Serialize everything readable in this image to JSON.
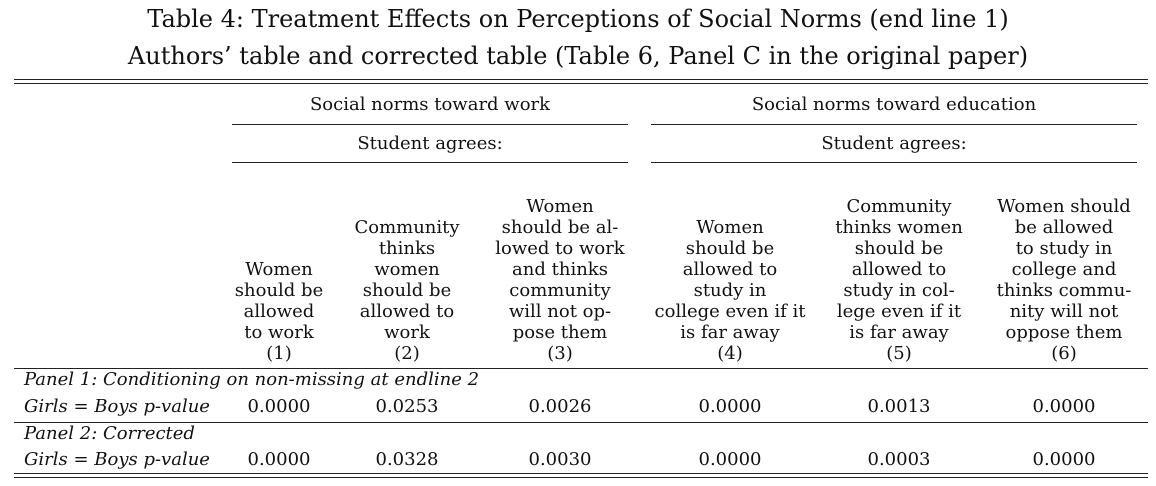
{
  "title": {
    "line1": "Table 4: Treatment Effects on Perceptions of Social Norms (end line 1)",
    "line2": "Authors’ table and corrected table (Table 6, Panel C in the original paper)"
  },
  "groups": [
    {
      "label": "Social norms toward work",
      "sublabel": "Student agrees:"
    },
    {
      "label": "Social norms toward education",
      "sublabel": "Student agrees:"
    }
  ],
  "columns": [
    {
      "lines": [
        "Women",
        "should be",
        "allowed",
        "to work"
      ],
      "number": "(1)"
    },
    {
      "lines": [
        "Community",
        "thinks",
        "women",
        "should be",
        "allowed to",
        "work"
      ],
      "number": "(2)"
    },
    {
      "lines": [
        "Women",
        "should be al-",
        "lowed to work",
        "and thinks",
        "community",
        "will not op-",
        "pose them"
      ],
      "number": "(3)"
    },
    {
      "lines": [
        "Women",
        "should be",
        "allowed to",
        "study in",
        "college even if it",
        "is far away"
      ],
      "number": "(4)"
    },
    {
      "lines": [
        "Community",
        "thinks women",
        "should be",
        "allowed to",
        "study in col-",
        "lege even if it",
        "is far away"
      ],
      "number": "(5)"
    },
    {
      "lines": [
        "Women should",
        "be allowed",
        "to study in",
        "college and",
        "thinks commu-",
        "nity will not",
        "oppose them"
      ],
      "number": "(6)"
    }
  ],
  "panels": [
    {
      "title": "Panel 1: Conditioning on non-missing at endline 2",
      "row_label": "Girls = Boys p-value",
      "values": [
        "0.0000",
        "0.0253",
        "0.0026",
        "0.0000",
        "0.0013",
        "0.0000"
      ]
    },
    {
      "title": "Panel 2: Corrected",
      "row_label": "Girls = Boys p-value",
      "values": [
        "0.0000",
        "0.0328",
        "0.0030",
        "0.0000",
        "0.0003",
        "0.0000"
      ]
    }
  ]
}
